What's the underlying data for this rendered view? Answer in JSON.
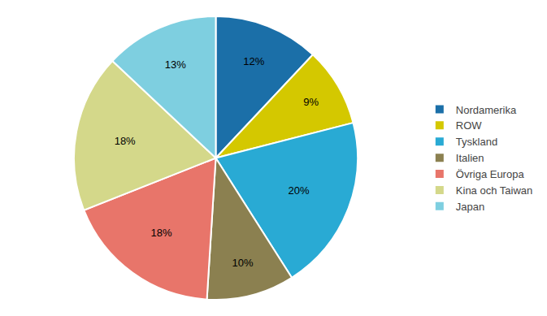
{
  "chart_data": {
    "type": "pie",
    "categories": [
      "Nordamerika",
      "ROW",
      "Tyskland",
      "Italien",
      "Övriga Europa",
      "Kina och Taiwan",
      "Japan"
    ],
    "values": [
      12,
      9,
      20,
      10,
      18,
      18,
      13
    ],
    "value_labels": [
      "12%",
      "9%",
      "20%",
      "10%",
      "18%",
      "18%",
      "13%"
    ],
    "colors": [
      "#1b6fa8",
      "#d4c800",
      "#29aad4",
      "#8b8050",
      "#e8756a",
      "#d4d88a",
      "#7ecfe0"
    ],
    "data_labels": true,
    "legend": "right"
  }
}
